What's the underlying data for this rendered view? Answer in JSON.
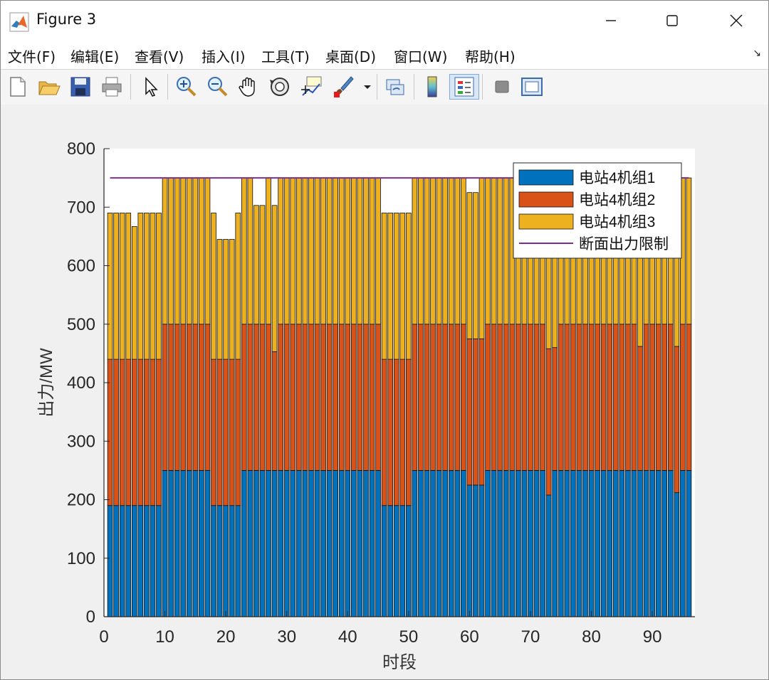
{
  "window": {
    "title": "Figure 3"
  },
  "menu": {
    "items": [
      "文件(F)",
      "编辑(E)",
      "查看(V)",
      "插入(I)",
      "工具(T)",
      "桌面(D)",
      "窗口(W)",
      "帮助(H)"
    ]
  },
  "toolbar": {
    "icons": [
      "new-figure-icon",
      "open-file-icon",
      "save-icon",
      "print-icon",
      "pointer-icon",
      "zoom-in-icon",
      "zoom-out-icon",
      "pan-hand-icon",
      "rotate-3d-icon",
      "data-cursor-icon",
      "brush-icon",
      "brush-dropdown-icon",
      "link-plot-icon",
      "colorbar-icon",
      "legend-icon",
      "hide-plot-tools-icon",
      "show-plot-tools-icon"
    ]
  },
  "colors": {
    "unit1": "#0072BD",
    "unit2": "#D95319",
    "unit3": "#EDB120",
    "limit": "#7E2F8E"
  },
  "chart_data": {
    "type": "bar",
    "stacked": true,
    "xlabel": "时段",
    "ylabel": "出力/MW",
    "xlim": [
      0,
      97
    ],
    "ylim": [
      0,
      800
    ],
    "xticks": [
      0,
      10,
      20,
      30,
      40,
      50,
      60,
      70,
      80,
      90
    ],
    "yticks": [
      0,
      100,
      200,
      300,
      400,
      500,
      600,
      700,
      800
    ],
    "grid": false,
    "legend_position": "top-right",
    "x": [
      1,
      2,
      3,
      4,
      5,
      6,
      7,
      8,
      9,
      10,
      11,
      12,
      13,
      14,
      15,
      16,
      17,
      18,
      19,
      20,
      21,
      22,
      23,
      24,
      25,
      26,
      27,
      28,
      29,
      30,
      31,
      32,
      33,
      34,
      35,
      36,
      37,
      38,
      39,
      40,
      41,
      42,
      43,
      44,
      45,
      46,
      47,
      48,
      49,
      50,
      51,
      52,
      53,
      54,
      55,
      56,
      57,
      58,
      59,
      60,
      61,
      62,
      63,
      64,
      65,
      66,
      67,
      68,
      69,
      70,
      71,
      72,
      73,
      74,
      75,
      76,
      77,
      78,
      79,
      80,
      81,
      82,
      83,
      84,
      85,
      86,
      87,
      88,
      89,
      90,
      91,
      92,
      93,
      94,
      95,
      96
    ],
    "series": [
      {
        "name": "电站4机组1",
        "values": [
          190,
          190,
          190,
          190,
          190,
          190,
          190,
          190,
          190,
          250,
          250,
          250,
          250,
          250,
          250,
          250,
          250,
          190,
          190,
          190,
          190,
          190,
          250,
          250,
          250,
          250,
          250,
          250,
          250,
          250,
          250,
          250,
          250,
          250,
          250,
          250,
          250,
          250,
          250,
          250,
          250,
          250,
          250,
          250,
          250,
          190,
          190,
          190,
          190,
          190,
          250,
          250,
          250,
          250,
          250,
          250,
          250,
          250,
          250,
          225,
          225,
          225,
          250,
          250,
          250,
          250,
          250,
          250,
          250,
          250,
          250,
          250,
          208,
          250,
          250,
          250,
          250,
          250,
          250,
          250,
          250,
          250,
          250,
          250,
          250,
          250,
          250,
          250,
          250,
          250,
          250,
          250,
          250,
          212,
          250,
          250
        ]
      },
      {
        "name": "电站4机组2",
        "values": [
          250,
          250,
          250,
          250,
          250,
          250,
          250,
          250,
          250,
          250,
          250,
          250,
          250,
          250,
          250,
          250,
          250,
          250,
          250,
          250,
          250,
          250,
          250,
          250,
          250,
          250,
          250,
          203,
          250,
          250,
          250,
          250,
          250,
          250,
          250,
          250,
          250,
          250,
          250,
          250,
          250,
          250,
          250,
          250,
          250,
          250,
          250,
          250,
          250,
          250,
          250,
          250,
          250,
          250,
          250,
          250,
          250,
          250,
          250,
          250,
          250,
          250,
          250,
          250,
          250,
          250,
          250,
          250,
          250,
          250,
          250,
          250,
          250,
          210,
          250,
          250,
          250,
          250,
          250,
          250,
          250,
          250,
          250,
          250,
          250,
          250,
          250,
          212,
          250,
          250,
          250,
          250,
          250,
          250,
          250,
          250
        ]
      },
      {
        "name": "电站4机组3",
        "values": [
          250,
          250,
          250,
          250,
          227,
          250,
          250,
          250,
          250,
          250,
          250,
          250,
          250,
          250,
          250,
          250,
          250,
          250,
          205,
          205,
          205,
          250,
          250,
          250,
          203,
          203,
          250,
          250,
          250,
          250,
          250,
          250,
          250,
          250,
          250,
          250,
          250,
          250,
          250,
          250,
          250,
          250,
          250,
          250,
          250,
          250,
          250,
          250,
          250,
          250,
          250,
          250,
          250,
          250,
          250,
          250,
          250,
          250,
          250,
          250,
          250,
          275,
          250,
          250,
          250,
          250,
          250,
          250,
          250,
          250,
          250,
          250,
          292,
          290,
          250,
          250,
          250,
          250,
          250,
          250,
          250,
          250,
          250,
          250,
          250,
          250,
          250,
          288,
          250,
          250,
          250,
          250,
          250,
          288,
          250,
          250
        ]
      },
      {
        "name": "断面出力限制",
        "type": "line",
        "value": 750
      }
    ]
  }
}
